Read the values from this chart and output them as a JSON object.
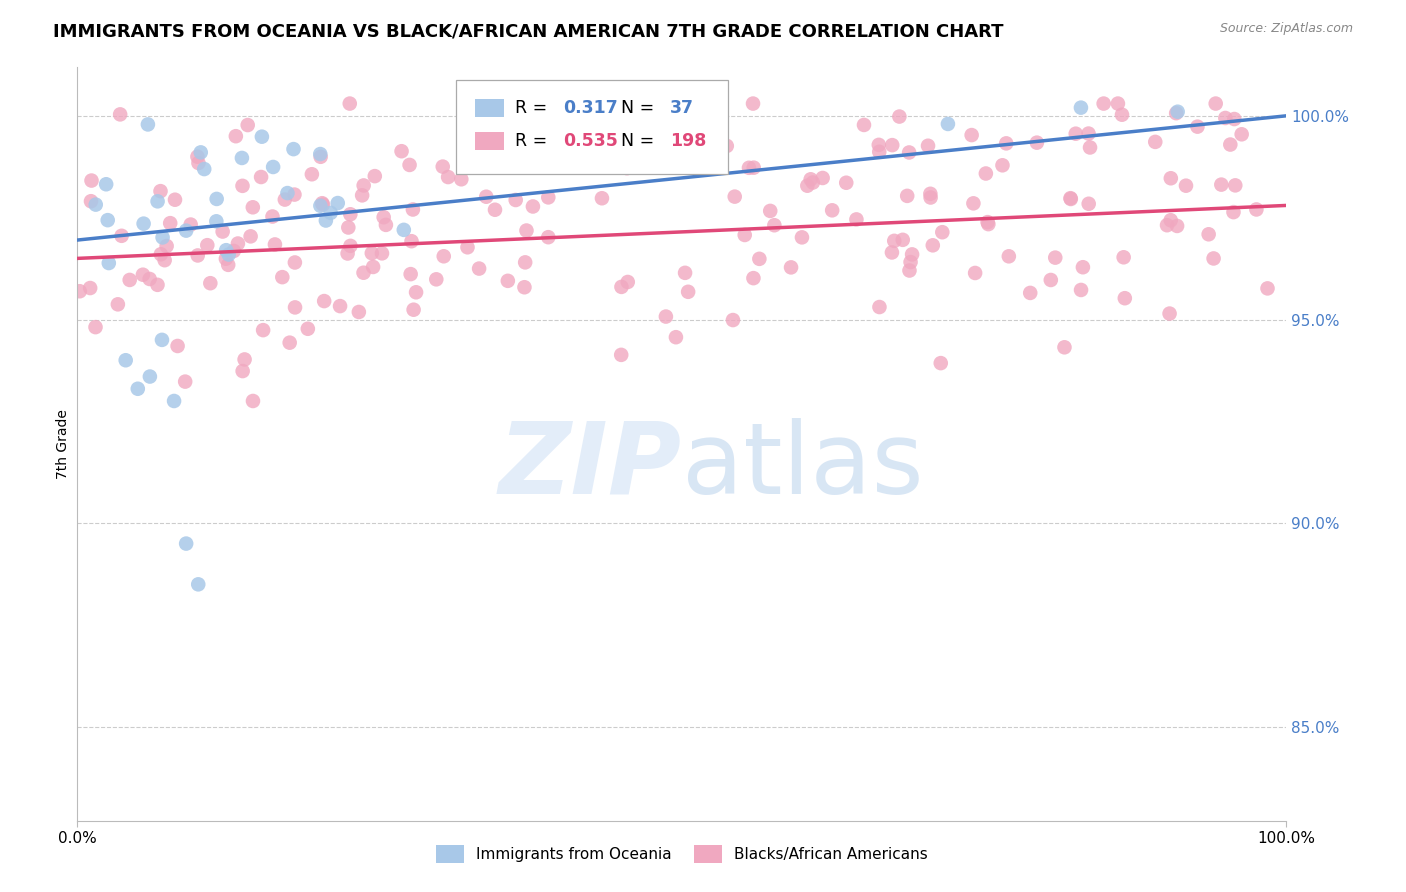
{
  "title": "IMMIGRANTS FROM OCEANIA VS BLACK/AFRICAN AMERICAN 7TH GRADE CORRELATION CHART",
  "source_text": "Source: ZipAtlas.com",
  "ylabel": "7th Grade",
  "xlim": [
    0.0,
    1.0
  ],
  "ylim": [
    0.827,
    1.012
  ],
  "y_ticks": [
    0.85,
    0.9,
    0.95,
    1.0
  ],
  "y_tick_labels": [
    "85.0%",
    "90.0%",
    "95.0%",
    "100.0%"
  ],
  "blue_R": 0.317,
  "blue_N": 37,
  "pink_R": 0.535,
  "pink_N": 198,
  "blue_color": "#a8c8e8",
  "pink_color": "#f0a8c0",
  "blue_line_color": "#4a7ec8",
  "pink_line_color": "#e04878",
  "legend_label_blue": "Immigrants from Oceania",
  "legend_label_pink": "Blacks/African Americans",
  "background_color": "#ffffff",
  "title_fontsize": 13,
  "axis_label_fontsize": 10,
  "tick_fontsize": 11,
  "ytick_color": "#4a7ec8",
  "source_color": "#888888"
}
